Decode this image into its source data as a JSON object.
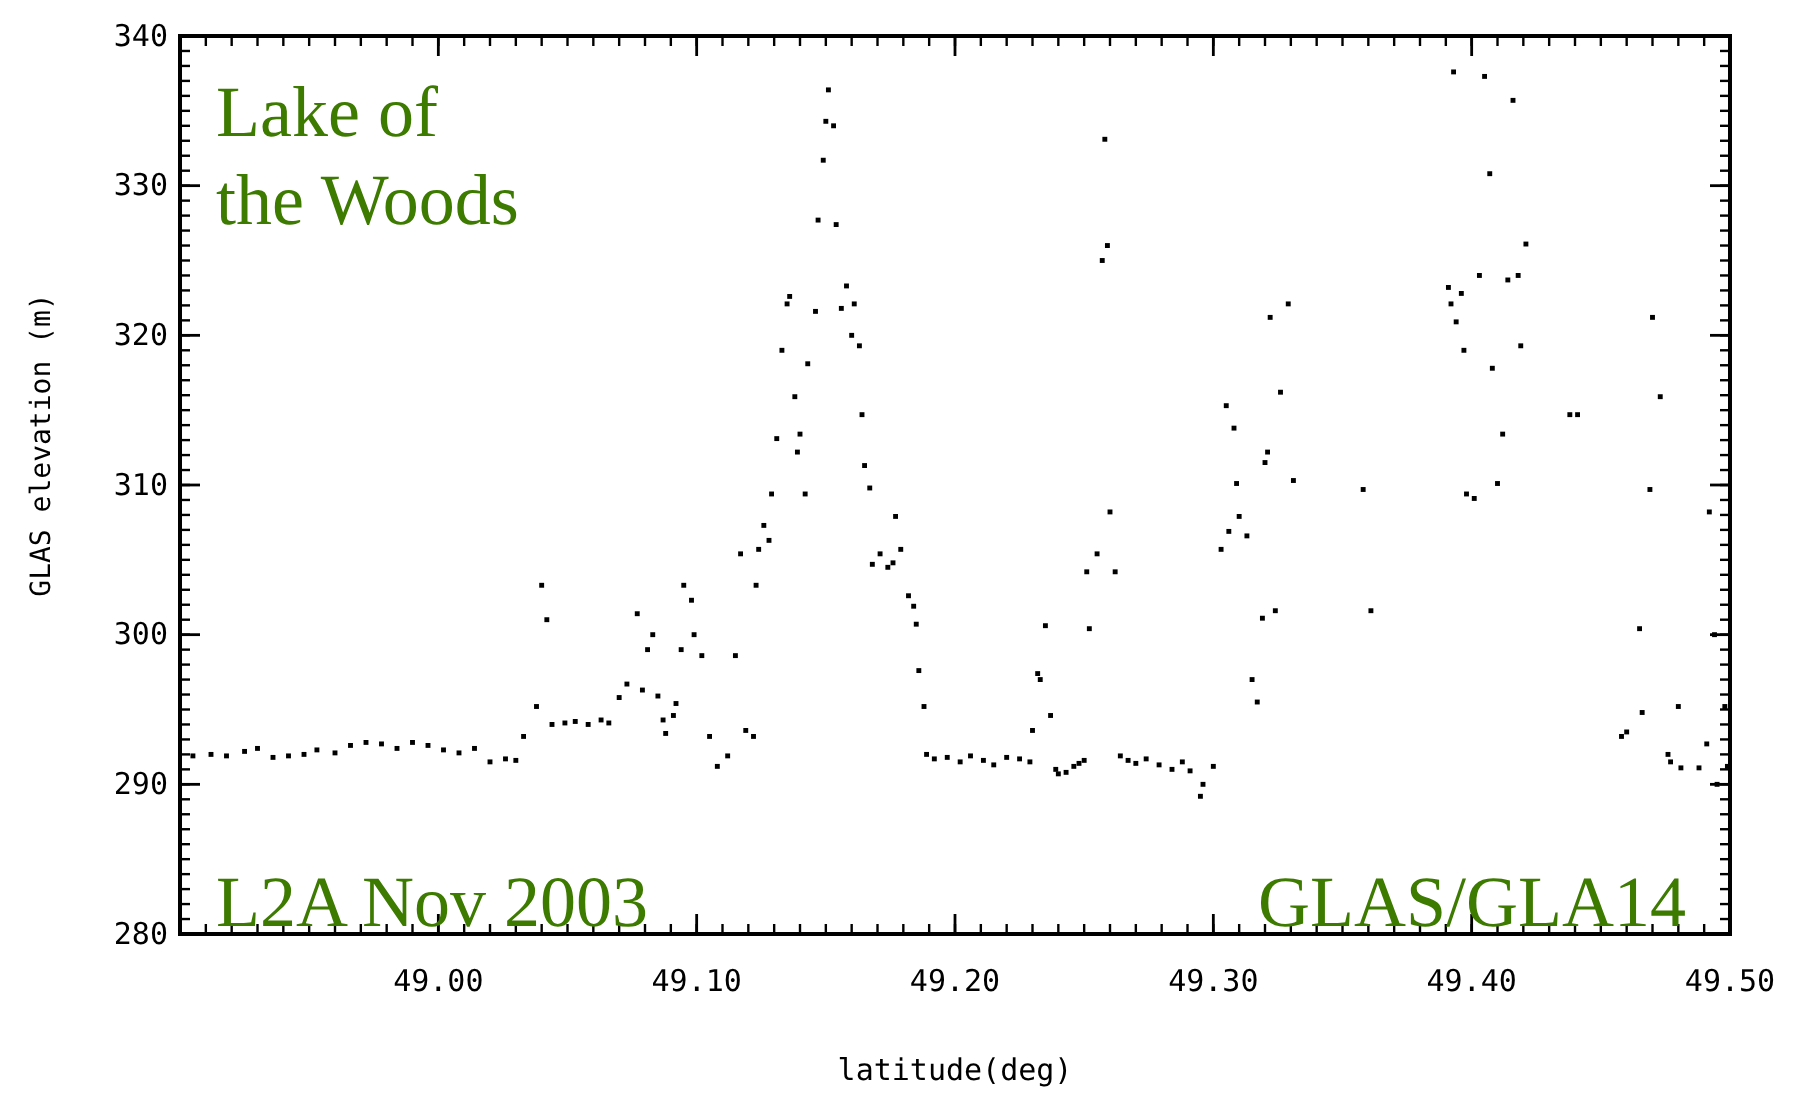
{
  "chart_data": {
    "type": "scatter",
    "xlabel": "latitude(deg)",
    "ylabel": "GLAS elevation (m)",
    "annotations": [
      "Lake of\nthe Woods",
      "L2A Nov 2003",
      "GLAS/GLA14"
    ],
    "xlim": [
      48.9,
      49.5
    ],
    "ylim": [
      280,
      340
    ],
    "xticks": [
      {
        "value": 49.0,
        "label": "49.00"
      },
      {
        "value": 49.1,
        "label": "49.10"
      },
      {
        "value": 49.2,
        "label": "49.20"
      },
      {
        "value": 49.3,
        "label": "49.30"
      },
      {
        "value": 49.4,
        "label": "49.40"
      },
      {
        "value": 49.5,
        "label": "49.50"
      }
    ],
    "yticks": [
      280,
      290,
      300,
      310,
      320,
      330,
      340
    ],
    "marker": "square",
    "series": [
      {
        "color": "#000000",
        "x": [
          48.905,
          48.912,
          48.918,
          48.925,
          48.93,
          48.936,
          48.942,
          48.948,
          48.953,
          48.96,
          48.966,
          48.972,
          48.978,
          48.984,
          48.99,
          48.996,
          49.002,
          49.008,
          49.014,
          49.02,
          49.026,
          49.03,
          49.033,
          49.038,
          49.04,
          49.042,
          49.044,
          49.049,
          49.053,
          49.058,
          49.063,
          49.066,
          49.07,
          49.073,
          49.077,
          49.079,
          49.081,
          49.083,
          49.085,
          49.087,
          49.088,
          49.091,
          49.092,
          49.094,
          49.095,
          49.098,
          49.099,
          49.102,
          49.105,
          49.108,
          49.112,
          49.115,
          49.117,
          49.119,
          49.122,
          49.123,
          49.124,
          49.126,
          49.128,
          49.129,
          49.131,
          49.133,
          49.135,
          49.136,
          49.138,
          49.139,
          49.14,
          49.142,
          49.143,
          49.146,
          49.147,
          49.149,
          49.15,
          49.151,
          49.153,
          49.154,
          49.156,
          49.158,
          49.16,
          49.161,
          49.163,
          49.164,
          49.165,
          49.167,
          49.168,
          49.171,
          49.174,
          49.176,
          49.177,
          49.179,
          49.182,
          49.184,
          49.185,
          49.186,
          49.188,
          49.189,
          49.192,
          49.197,
          49.202,
          49.206,
          49.211,
          49.215,
          49.22,
          49.225,
          49.229,
          49.23,
          49.232,
          49.233,
          49.235,
          49.237,
          49.239,
          49.24,
          49.243,
          49.246,
          49.248,
          49.25,
          49.251,
          49.252,
          49.255,
          49.257,
          49.258,
          49.259,
          49.26,
          49.262,
          49.264,
          49.267,
          49.27,
          49.274,
          49.279,
          49.284,
          49.288,
          49.291,
          49.295,
          49.296,
          49.3,
          49.303,
          49.305,
          49.306,
          49.308,
          49.309,
          49.31,
          49.313,
          49.315,
          49.317,
          49.319,
          49.32,
          49.321,
          49.322,
          49.324,
          49.326,
          49.329,
          49.331,
          49.358,
          49.361,
          49.391,
          49.392,
          49.393,
          49.394,
          49.396,
          49.397,
          49.398,
          49.401,
          49.403,
          49.405,
          49.407,
          49.408,
          49.41,
          49.412,
          49.414,
          49.416,
          49.418,
          49.419,
          49.421,
          49.438,
          49.441,
          49.458,
          49.46,
          49.465,
          49.466,
          49.469,
          49.47,
          49.473,
          49.476,
          49.477,
          49.48,
          49.481,
          49.488,
          49.491,
          49.492,
          49.494,
          49.495,
          49.498,
          49.499
        ],
        "values": [
          291.9,
          292.0,
          291.9,
          292.2,
          292.4,
          291.8,
          291.9,
          292.0,
          292.3,
          292.1,
          292.6,
          292.8,
          292.7,
          292.4,
          292.8,
          292.6,
          292.3,
          292.1,
          292.4,
          291.5,
          291.7,
          291.6,
          293.2,
          295.2,
          303.3,
          301.0,
          294.0,
          294.1,
          294.2,
          294.0,
          294.3,
          294.1,
          295.8,
          296.7,
          301.4,
          296.3,
          299.0,
          300.0,
          295.9,
          294.3,
          293.4,
          294.6,
          295.4,
          299.0,
          303.3,
          302.3,
          300.0,
          298.6,
          293.2,
          291.2,
          291.9,
          298.6,
          305.4,
          293.6,
          293.2,
          303.3,
          305.7,
          307.3,
          306.3,
          309.4,
          313.1,
          319.0,
          322.1,
          322.6,
          315.9,
          312.2,
          313.4,
          309.4,
          318.1,
          321.6,
          327.7,
          331.7,
          334.3,
          336.4,
          334.0,
          327.4,
          321.8,
          323.3,
          320.0,
          322.1,
          319.3,
          314.7,
          311.3,
          309.8,
          304.7,
          305.4,
          304.5,
          304.8,
          307.9,
          305.7,
          302.6,
          301.9,
          300.7,
          297.6,
          295.2,
          292.0,
          291.7,
          291.8,
          291.5,
          291.9,
          291.6,
          291.3,
          291.8,
          291.7,
          291.5,
          293.6,
          297.4,
          297.0,
          300.6,
          294.6,
          291.0,
          290.7,
          290.8,
          291.2,
          291.4,
          291.6,
          304.2,
          300.4,
          305.4,
          325.0,
          333.1,
          326.0,
          308.2,
          304.2,
          291.9,
          291.6,
          291.4,
          291.7,
          291.3,
          291.0,
          291.5,
          290.9,
          289.2,
          290.0,
          291.2,
          305.7,
          315.3,
          306.9,
          313.8,
          310.1,
          307.9,
          306.6,
          297.0,
          295.5,
          301.1,
          311.5,
          312.2,
          321.2,
          301.6,
          316.2,
          322.1,
          310.3,
          309.7,
          301.6,
          323.2,
          322.1,
          337.6,
          320.9,
          322.8,
          319.0,
          309.4,
          309.1,
          324.0,
          337.3,
          330.8,
          317.8,
          310.1,
          313.4,
          323.7,
          335.7,
          324.0,
          319.3,
          326.1,
          314.7,
          314.7,
          293.2,
          293.5,
          300.4,
          294.8,
          309.7,
          321.2,
          315.9,
          292.0,
          291.5,
          295.2,
          291.1,
          291.1,
          292.7,
          308.2,
          300.0,
          290.0,
          295.2,
          291.2
        ]
      }
    ]
  }
}
